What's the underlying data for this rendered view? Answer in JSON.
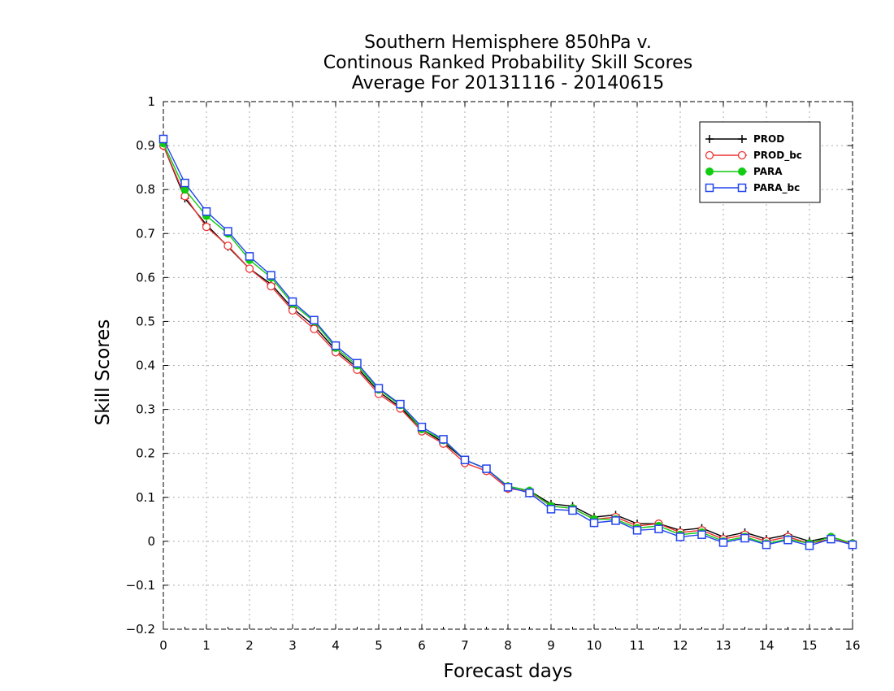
{
  "chart_data": {
    "type": "line",
    "title": [
      "Southern Hemisphere 850hPa v.",
      "Continous Ranked Probability Skill Scores",
      "Average For 20131116 - 20140615"
    ],
    "xlabel": "Forecast days",
    "ylabel": "Skill Scores",
    "xlim": [
      0,
      16
    ],
    "ylim": [
      -0.2,
      1
    ],
    "xticks": [
      "0",
      "1",
      "2",
      "3",
      "4",
      "5",
      "6",
      "7",
      "8",
      "9",
      "10",
      "11",
      "12",
      "13",
      "14",
      "15",
      "16"
    ],
    "yticks": [
      "−0.2",
      "−0.1",
      "0",
      "0.1",
      "0.2",
      "0.3",
      "0.4",
      "0.5",
      "0.6",
      "0.7",
      "0.8",
      "0.9",
      "1"
    ],
    "ytick_values": [
      -0.2,
      -0.1,
      0,
      0.1,
      0.2,
      0.3,
      0.4,
      0.5,
      0.6,
      0.7,
      0.8,
      0.9,
      1
    ],
    "grid": true,
    "legend_position": "top-right",
    "x": [
      0,
      0.5,
      1,
      1.5,
      2,
      2.5,
      3,
      3.5,
      4,
      4.5,
      5,
      5.5,
      6,
      6.5,
      7,
      7.5,
      8,
      8.5,
      9,
      9.5,
      10,
      10.5,
      11,
      11.5,
      12,
      12.5,
      13,
      13.5,
      14,
      14.5,
      15,
      15.5,
      16
    ],
    "series": [
      {
        "name": "PROD",
        "color": "#000000",
        "marker": "plus",
        "values": [
          0.9,
          0.78,
          0.72,
          0.67,
          0.62,
          0.585,
          0.53,
          0.49,
          0.435,
          0.395,
          0.34,
          0.305,
          0.255,
          0.225,
          0.185,
          0.165,
          0.125,
          0.115,
          0.085,
          0.08,
          0.055,
          0.06,
          0.04,
          0.04,
          0.025,
          0.03,
          0.01,
          0.02,
          0.005,
          0.015,
          0.0,
          0.01,
          -0.005
        ]
      },
      {
        "name": "PROD_bc",
        "color": "#ee3333",
        "marker": "circle",
        "values": [
          0.9,
          0.785,
          0.715,
          0.672,
          0.62,
          0.58,
          0.525,
          0.483,
          0.43,
          0.39,
          0.335,
          0.302,
          0.25,
          0.222,
          0.178,
          0.16,
          0.12,
          0.113,
          0.08,
          0.075,
          0.05,
          0.055,
          0.035,
          0.04,
          0.02,
          0.025,
          0.005,
          0.015,
          0.0,
          0.01,
          -0.005,
          0.005,
          -0.005
        ]
      },
      {
        "name": "PARA",
        "color": "#11cc11",
        "marker": "dot",
        "values": [
          0.905,
          0.8,
          0.74,
          0.7,
          0.64,
          0.6,
          0.54,
          0.5,
          0.44,
          0.4,
          0.345,
          0.31,
          0.255,
          0.23,
          0.185,
          0.165,
          0.125,
          0.115,
          0.08,
          0.075,
          0.05,
          0.05,
          0.03,
          0.035,
          0.015,
          0.02,
          0.0,
          0.01,
          -0.005,
          0.005,
          -0.005,
          0.01,
          -0.005
        ]
      },
      {
        "name": "PARA_bc",
        "color": "#2244ee",
        "marker": "square",
        "values": [
          0.915,
          0.815,
          0.75,
          0.705,
          0.648,
          0.605,
          0.545,
          0.503,
          0.445,
          0.405,
          0.348,
          0.312,
          0.26,
          0.232,
          0.185,
          0.165,
          0.123,
          0.11,
          0.073,
          0.07,
          0.042,
          0.047,
          0.025,
          0.028,
          0.01,
          0.015,
          -0.003,
          0.007,
          -0.008,
          0.003,
          -0.01,
          0.005,
          -0.008
        ]
      }
    ]
  }
}
